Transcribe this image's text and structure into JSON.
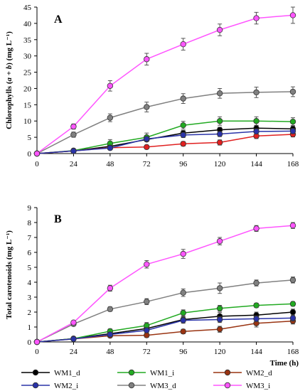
{
  "chart_data": [
    {
      "type": "line",
      "panel_label": "A",
      "ylabel_pre": "Chlorophylls (",
      "ylabel_ital": "a + b",
      "ylabel_post": ") (mg L⁻¹)",
      "xlabel": "",
      "x": [
        0,
        24,
        48,
        72,
        96,
        120,
        144,
        168
      ],
      "xlim": [
        0,
        168
      ],
      "ylim": [
        0,
        45
      ],
      "yticks": [
        0,
        5,
        10,
        15,
        20,
        25,
        30,
        35,
        40,
        45
      ],
      "series": [
        {
          "name": "WM1_d",
          "color": "#000000",
          "values": [
            0,
            0.8,
            2.2,
            4.3,
            6.3,
            7.3,
            7.8,
            7.6
          ],
          "err": [
            0,
            0.3,
            0.5,
            0.6,
            0.8,
            0.8,
            0.8,
            0.8
          ]
        },
        {
          "name": "WM1_i",
          "color": "#22aa22",
          "values": [
            0,
            0.9,
            3.1,
            5.0,
            8.7,
            10.0,
            10.0,
            9.8
          ],
          "err": [
            0,
            0.3,
            1.2,
            1.3,
            1.2,
            1.3,
            1.3,
            1.2
          ]
        },
        {
          "name": "WM2_d",
          "color": "#e02020",
          "values": [
            0,
            0.8,
            1.8,
            2.0,
            3.0,
            3.4,
            5.4,
            5.9
          ],
          "err": [
            0,
            0.2,
            0.4,
            0.6,
            0.7,
            0.8,
            0.8,
            0.8
          ]
        },
        {
          "name": "WM2_i",
          "color": "#2a33a8",
          "values": [
            0,
            0.8,
            1.7,
            4.5,
            5.7,
            6.0,
            6.8,
            6.9
          ],
          "err": [
            0,
            0.2,
            0.4,
            0.6,
            0.8,
            0.8,
            0.8,
            0.8
          ]
        },
        {
          "name": "WM3_d",
          "color": "#808080",
          "values": [
            0,
            5.8,
            11.0,
            14.3,
            16.9,
            18.5,
            18.8,
            19.0
          ],
          "err": [
            0,
            0.8,
            1.2,
            1.5,
            1.5,
            1.5,
            1.6,
            1.5
          ]
        },
        {
          "name": "WM3_i",
          "color": "#ff55ff",
          "values": [
            0,
            8.3,
            20.8,
            29.0,
            33.6,
            38.0,
            41.6,
            42.5
          ],
          "err": [
            0,
            0.8,
            1.6,
            1.8,
            1.8,
            1.8,
            1.8,
            2.5
          ]
        }
      ]
    },
    {
      "type": "line",
      "panel_label": "B",
      "ylabel": "Total carotenoids (mg L⁻¹)",
      "xlabel": "Time (h)",
      "x": [
        0,
        24,
        48,
        72,
        96,
        120,
        144,
        168
      ],
      "xlim": [
        0,
        168
      ],
      "ylim": [
        0,
        9
      ],
      "yticks": [
        0,
        1,
        2,
        3,
        4,
        5,
        6,
        7,
        8,
        9
      ],
      "series": [
        {
          "name": "WM1_d",
          "color": "#000000",
          "values": [
            0,
            0.22,
            0.55,
            0.9,
            1.5,
            1.72,
            1.8,
            2.0
          ],
          "err": [
            0,
            0.05,
            0.1,
            0.15,
            0.2,
            0.25,
            0.2,
            0.2
          ]
        },
        {
          "name": "WM1_i",
          "color": "#22aa22",
          "values": [
            0,
            0.22,
            0.72,
            1.1,
            1.95,
            2.25,
            2.45,
            2.55
          ],
          "err": [
            0,
            0.05,
            0.15,
            0.2,
            0.2,
            0.2,
            0.15,
            0.15
          ]
        },
        {
          "name": "WM2_d",
          "color": "#993311",
          "values": [
            0,
            0.2,
            0.42,
            0.45,
            0.7,
            0.85,
            1.25,
            1.4
          ],
          "err": [
            0,
            0.05,
            0.1,
            0.15,
            0.15,
            0.2,
            0.25,
            0.2
          ]
        },
        {
          "name": "WM2_i",
          "color": "#2a33a8",
          "values": [
            0,
            0.2,
            0.5,
            0.78,
            1.45,
            1.5,
            1.55,
            1.6
          ],
          "err": [
            0,
            0.05,
            0.1,
            0.15,
            0.2,
            0.2,
            0.2,
            0.2
          ]
        },
        {
          "name": "WM3_d",
          "color": "#808080",
          "values": [
            0,
            1.2,
            2.2,
            2.7,
            3.3,
            3.6,
            3.95,
            4.15
          ],
          "err": [
            0,
            0.1,
            0.15,
            0.2,
            0.25,
            0.35,
            0.2,
            0.2
          ]
        },
        {
          "name": "WM3_i",
          "color": "#ff55ff",
          "values": [
            0,
            1.3,
            3.6,
            5.2,
            5.9,
            6.75,
            7.6,
            7.8
          ],
          "err": [
            0,
            0.1,
            0.2,
            0.25,
            0.3,
            0.25,
            0.2,
            0.2
          ]
        }
      ]
    }
  ],
  "legend": [
    {
      "label": "WM1_d",
      "color": "#000000"
    },
    {
      "label": "WM1_i",
      "color": "#22aa22"
    },
    {
      "label": "WM2_d",
      "color": "#993311"
    },
    {
      "label": "WM2_i",
      "color": "#2a33a8"
    },
    {
      "label": "WM3_d",
      "color": "#808080"
    },
    {
      "label": "WM3_i",
      "color": "#ff55ff"
    }
  ]
}
